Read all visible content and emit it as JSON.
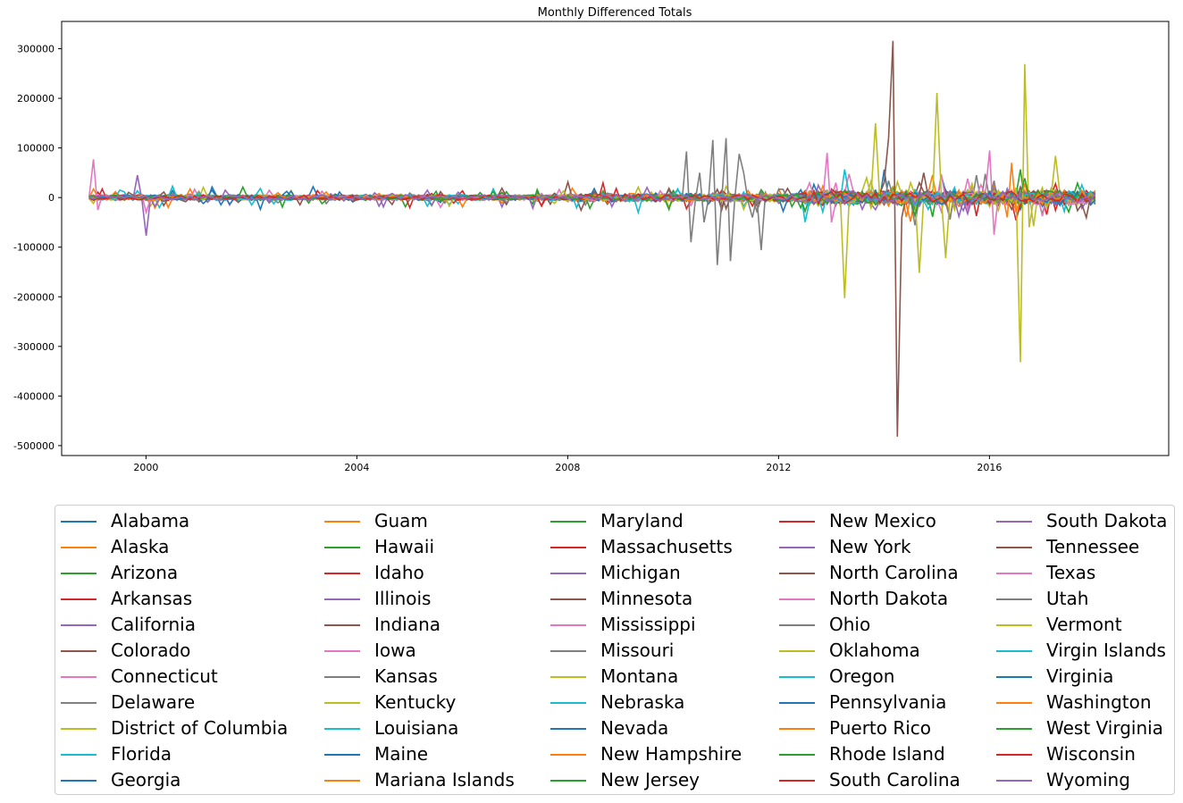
{
  "chart_data": {
    "type": "line",
    "title": "Monthly Differenced Totals",
    "xlabel": "",
    "ylabel": "",
    "xlim": [
      1998.4,
      2019.4
    ],
    "ylim": [
      -520000,
      355000
    ],
    "x_ticks": [
      2000,
      2004,
      2008,
      2012,
      2016
    ],
    "x_tick_labels": [
      "2000",
      "2004",
      "2008",
      "2012",
      "2016"
    ],
    "y_ticks": [
      300000,
      200000,
      100000,
      0,
      -100000,
      -200000,
      -300000,
      -400000,
      -500000
    ],
    "y_tick_labels": [
      "300000",
      "200000",
      "100000",
      "0",
      "-100000",
      "-200000",
      "-300000",
      "-400000",
      "-500000"
    ],
    "legend_position": "below",
    "legend_columns": 5,
    "series": [
      {
        "name": "Alabama",
        "color": "#1f77b4"
      },
      {
        "name": "Alaska",
        "color": "#ff7f0e"
      },
      {
        "name": "Arizona",
        "color": "#2ca02c"
      },
      {
        "name": "Arkansas",
        "color": "#d62728"
      },
      {
        "name": "California",
        "color": "#9467bd"
      },
      {
        "name": "Colorado",
        "color": "#8c564b"
      },
      {
        "name": "Connecticut",
        "color": "#e377c2"
      },
      {
        "name": "Delaware",
        "color": "#7f7f7f"
      },
      {
        "name": "District of Columbia",
        "color": "#bcbd22"
      },
      {
        "name": "Florida",
        "color": "#17becf"
      },
      {
        "name": "Georgia",
        "color": "#1f77b4"
      },
      {
        "name": "Guam",
        "color": "#ff7f0e"
      },
      {
        "name": "Hawaii",
        "color": "#2ca02c"
      },
      {
        "name": "Idaho",
        "color": "#d62728"
      },
      {
        "name": "Illinois",
        "color": "#9467bd"
      },
      {
        "name": "Indiana",
        "color": "#8c564b"
      },
      {
        "name": "Iowa",
        "color": "#e377c2"
      },
      {
        "name": "Kansas",
        "color": "#7f7f7f"
      },
      {
        "name": "Kentucky",
        "color": "#bcbd22"
      },
      {
        "name": "Louisiana",
        "color": "#17becf"
      },
      {
        "name": "Maine",
        "color": "#1f77b4"
      },
      {
        "name": "Mariana Islands",
        "color": "#ff7f0e"
      },
      {
        "name": "Maryland",
        "color": "#2ca02c"
      },
      {
        "name": "Massachusetts",
        "color": "#d62728"
      },
      {
        "name": "Michigan",
        "color": "#9467bd"
      },
      {
        "name": "Minnesota",
        "color": "#8c564b"
      },
      {
        "name": "Mississippi",
        "color": "#e377c2"
      },
      {
        "name": "Missouri",
        "color": "#7f7f7f"
      },
      {
        "name": "Montana",
        "color": "#bcbd22"
      },
      {
        "name": "Nebraska",
        "color": "#17becf"
      },
      {
        "name": "Nevada",
        "color": "#1f77b4"
      },
      {
        "name": "New Hampshire",
        "color": "#ff7f0e"
      },
      {
        "name": "New Jersey",
        "color": "#2ca02c"
      },
      {
        "name": "New Mexico",
        "color": "#d62728"
      },
      {
        "name": "New York",
        "color": "#9467bd"
      },
      {
        "name": "North Carolina",
        "color": "#8c564b"
      },
      {
        "name": "North Dakota",
        "color": "#e377c2"
      },
      {
        "name": "Ohio",
        "color": "#7f7f7f"
      },
      {
        "name": "Oklahoma",
        "color": "#bcbd22"
      },
      {
        "name": "Oregon",
        "color": "#17becf"
      },
      {
        "name": "Pennsylvania",
        "color": "#1f77b4"
      },
      {
        "name": "Puerto Rico",
        "color": "#ff7f0e"
      },
      {
        "name": "Rhode Island",
        "color": "#2ca02c"
      },
      {
        "name": "South Carolina",
        "color": "#d62728"
      },
      {
        "name": "South Dakota",
        "color": "#9467bd"
      },
      {
        "name": "Tennessee",
        "color": "#8c564b"
      },
      {
        "name": "Texas",
        "color": "#e377c2"
      },
      {
        "name": "Utah",
        "color": "#7f7f7f"
      },
      {
        "name": "Vermont",
        "color": "#bcbd22"
      },
      {
        "name": "Virgin Islands",
        "color": "#17becf"
      },
      {
        "name": "Virginia",
        "color": "#1f77b4"
      },
      {
        "name": "Washington",
        "color": "#ff7f0e"
      },
      {
        "name": "West Virginia",
        "color": "#2ca02c"
      },
      {
        "name": "Wisconsin",
        "color": "#d62728"
      },
      {
        "name": "Wyoming",
        "color": "#9467bd"
      }
    ],
    "highlighted_series_data": {
      "Tennessee": {
        "x": [
          2013.5,
          2013.8,
          2014.0,
          2014.08,
          2014.17,
          2014.25,
          2014.33,
          2014.5,
          2014.75
        ],
        "y": [
          0,
          5000,
          30000,
          120000,
          316000,
          -482000,
          -40000,
          10000,
          50000
        ]
      },
      "Vermont": {
        "x": [
          2013.0,
          2013.25,
          2013.5,
          2013.67,
          2013.83,
          2014.0,
          2014.5,
          2014.67,
          2014.83,
          2015.0,
          2015.17,
          2016.33,
          2016.5,
          2016.58,
          2016.67,
          2016.75,
          2017.0,
          2017.08,
          2017.25
        ],
        "y": [
          0,
          -203000,
          0,
          40000,
          150000,
          0,
          30000,
          -152000,
          0,
          211000,
          -122000,
          0,
          20000,
          -332000,
          269000,
          -60000,
          20000,
          -20000,
          84000
        ]
      },
      "Utah": {
        "x": [
          2010.0,
          2010.25,
          2010.33,
          2010.5,
          2010.58,
          2010.75,
          2010.83,
          2011.0,
          2011.08,
          2011.25,
          2011.33,
          2011.5,
          2011.67,
          2011.75
        ],
        "y": [
          10000,
          93000,
          -90000,
          50000,
          -50000,
          116000,
          -136000,
          120000,
          -128000,
          88000,
          50000,
          -40000,
          -106000,
          10000
        ]
      },
      "Texas": {
        "x": [
          1998.9,
          1999.0,
          1999.1,
          1999.2,
          2000.0,
          2012.9,
          2013.0,
          2016.0,
          2016.1
        ],
        "y": [
          0,
          77000,
          -25000,
          5000,
          -30000,
          90000,
          -50000,
          95000,
          -75000
        ]
      },
      "Illinois": {
        "x": [
          1999.8,
          2000.0,
          2000.1
        ],
        "y": [
          45000,
          -77000,
          0
        ]
      },
      "Washington": {
        "x": [
          2016.3,
          2016.4,
          2016.5
        ],
        "y": [
          -40000,
          70000,
          -30000
        ]
      }
    }
  },
  "legend": {
    "columns": [
      [
        "Alabama",
        "Alaska",
        "Arizona",
        "Arkansas",
        "California",
        "Colorado",
        "Connecticut",
        "Delaware",
        "District of Columbia",
        "Florida",
        "Georgia"
      ],
      [
        "Guam",
        "Hawaii",
        "Idaho",
        "Illinois",
        "Indiana",
        "Iowa",
        "Kansas",
        "Kentucky",
        "Louisiana",
        "Maine",
        "Mariana Islands"
      ],
      [
        "Maryland",
        "Massachusetts",
        "Michigan",
        "Minnesota",
        "Mississippi",
        "Missouri",
        "Montana",
        "Nebraska",
        "Nevada",
        "New Hampshire",
        "New Jersey"
      ],
      [
        "New Mexico",
        "New York",
        "North Carolina",
        "North Dakota",
        "Ohio",
        "Oklahoma",
        "Oregon",
        "Pennsylvania",
        "Puerto Rico",
        "Rhode Island",
        "South Carolina"
      ],
      [
        "South Dakota",
        "Tennessee",
        "Texas",
        "Utah",
        "Vermont",
        "Virgin Islands",
        "Virginia",
        "Washington",
        "West Virginia",
        "Wisconsin",
        "Wyoming"
      ]
    ]
  }
}
